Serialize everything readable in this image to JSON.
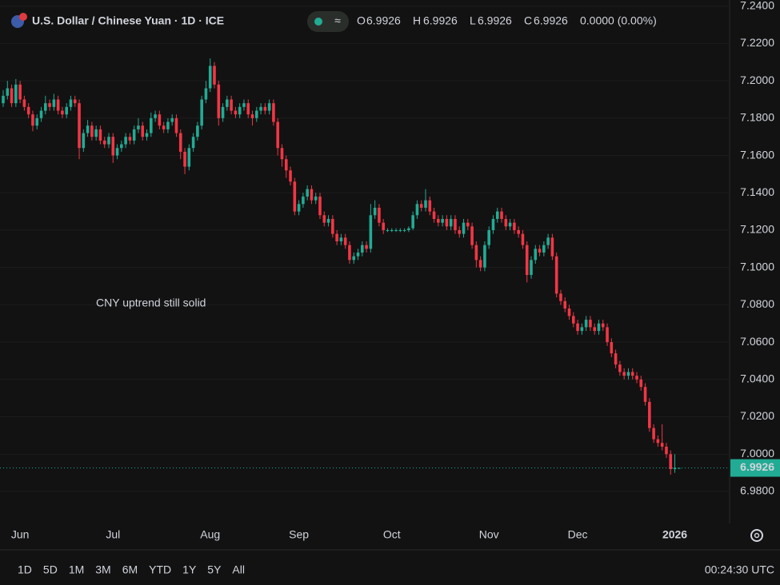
{
  "header": {
    "title": "U.S. Dollar / Chinese Yuan · 1D · ICE",
    "ohlc_letters": [
      "O",
      "H",
      "L",
      "C"
    ],
    "change": "0.0000 (0.00%)"
  },
  "chart_data": {
    "type": "candlestick",
    "annotation": "CNY uptrend still solid",
    "up_color": "#22ab94",
    "down_color": "#f23645",
    "annotation_color": "#e8141c",
    "ylim": [
      6.965,
      7.2433
    ],
    "yticks": [
      {
        "value": 7.24,
        "label": "7.2400"
      },
      {
        "value": 7.22,
        "label": "7.2200"
      },
      {
        "value": 7.2,
        "label": "7.2000"
      },
      {
        "value": 7.18,
        "label": "7.1800"
      },
      {
        "value": 7.16,
        "label": "7.1600"
      },
      {
        "value": 7.14,
        "label": "7.1400"
      },
      {
        "value": 7.12,
        "label": "7.1200"
      },
      {
        "value": 7.1,
        "label": "7.1000"
      },
      {
        "value": 7.08,
        "label": "7.0800"
      },
      {
        "value": 7.06,
        "label": "7.0600"
      },
      {
        "value": 7.04,
        "label": "7.0400"
      },
      {
        "value": 7.02,
        "label": "7.0200"
      },
      {
        "value": 7,
        "label": "7.0000"
      },
      {
        "value": 6.98,
        "label": "6.9800"
      }
    ],
    "grid": true,
    "categories": [
      null,
      null,
      null,
      null,
      "Jun",
      null,
      null,
      null,
      null,
      null,
      null,
      null,
      null,
      null,
      null,
      null,
      null,
      null,
      null,
      null,
      null,
      null,
      null,
      null,
      null,
      null,
      "Jul",
      null,
      null,
      null,
      null,
      null,
      null,
      null,
      null,
      null,
      null,
      null,
      null,
      null,
      null,
      null,
      null,
      null,
      null,
      null,
      null,
      null,
      null,
      "Aug",
      null,
      null,
      null,
      null,
      null,
      null,
      null,
      null,
      null,
      null,
      null,
      null,
      null,
      null,
      null,
      null,
      null,
      null,
      null,
      null,
      "Sep",
      null,
      null,
      null,
      null,
      null,
      null,
      null,
      null,
      null,
      null,
      null,
      null,
      null,
      null,
      null,
      null,
      null,
      null,
      null,
      null,
      null,
      "Oct",
      null,
      null,
      null,
      null,
      null,
      null,
      null,
      null,
      null,
      null,
      null,
      null,
      null,
      null,
      null,
      null,
      null,
      null,
      null,
      null,
      null,
      null,
      "Nov",
      null,
      null,
      null,
      null,
      null,
      null,
      null,
      null,
      null,
      null,
      null,
      null,
      null,
      null,
      null,
      null,
      null,
      null,
      null,
      null,
      "Dec",
      null,
      null,
      null,
      null,
      null,
      null,
      null,
      null,
      null,
      null,
      null,
      null,
      null,
      null,
      null,
      null,
      null,
      null,
      null,
      null,
      null,
      null,
      "2026",
      null
    ],
    "open": [
      7.188,
      7.192,
      7.196,
      7.188,
      7.198,
      7.19,
      7.186,
      7.182,
      7.176,
      7.18,
      7.184,
      7.188,
      7.186,
      7.19,
      7.184,
      7.182,
      7.186,
      7.19,
      7.188,
      7.164,
      7.172,
      7.176,
      7.17,
      7.174,
      7.168,
      7.166,
      7.17,
      7.16,
      7.164,
      7.166,
      7.17,
      7.168,
      7.174,
      7.176,
      7.17,
      7.172,
      7.18,
      7.182,
      7.176,
      7.174,
      7.178,
      7.18,
      7.172,
      7.162,
      7.154,
      7.164,
      7.17,
      7.176,
      7.19,
      7.196,
      7.208,
      7.198,
      7.18,
      7.186,
      7.19,
      7.184,
      7.182,
      7.186,
      7.188,
      7.182,
      7.18,
      7.184,
      7.186,
      7.184,
      7.188,
      7.178,
      7.164,
      7.158,
      7.152,
      7.146,
      7.13,
      7.134,
      7.138,
      7.142,
      7.136,
      7.138,
      7.128,
      7.124,
      7.126,
      7.118,
      7.114,
      7.116,
      7.112,
      7.104,
      7.106,
      7.108,
      7.112,
      7.11,
      7.128,
      7.132,
      7.124,
      7.12,
      7.12,
      7.12,
      7.12,
      7.12,
      7.12,
      7.121,
      7.128,
      7.134,
      7.132,
      7.136,
      7.13,
      7.126,
      7.124,
      7.126,
      7.122,
      7.126,
      7.12,
      7.118,
      7.124,
      7.122,
      7.112,
      7.104,
      7.1,
      7.112,
      7.12,
      7.126,
      7.13,
      7.126,
      7.122,
      7.124,
      7.12,
      7.118,
      7.112,
      7.096,
      7.104,
      7.11,
      7.108,
      7.112,
      7.116,
      7.106,
      7.086,
      7.082,
      7.078,
      7.074,
      7.07,
      7.066,
      7.068,
      7.072,
      7.068,
      7.066,
      7.07,
      7.068,
      7.06,
      7.054,
      7.048,
      7.044,
      7.042,
      7.044,
      7.042,
      7.04,
      7.036,
      7.028,
      7.014,
      7.008,
      7.006,
      7.004,
      7.0,
      6.992,
      6.9926
    ],
    "high": [
      7.195,
      7.2,
      7.198,
      7.201,
      7.2,
      7.192,
      7.188,
      7.184,
      7.182,
      7.186,
      7.192,
      7.19,
      7.193,
      7.192,
      7.186,
      7.188,
      7.192,
      7.192,
      7.19,
      7.174,
      7.179,
      7.178,
      7.176,
      7.176,
      7.17,
      7.172,
      7.172,
      7.166,
      7.168,
      7.172,
      7.172,
      7.176,
      7.18,
      7.178,
      7.174,
      7.183,
      7.184,
      7.184,
      7.178,
      7.18,
      7.182,
      7.182,
      7.174,
      7.164,
      7.166,
      7.172,
      7.178,
      7.192,
      7.2,
      7.212,
      7.21,
      7.2,
      7.188,
      7.192,
      7.192,
      7.186,
      7.188,
      7.19,
      7.19,
      7.184,
      7.186,
      7.188,
      7.188,
      7.19,
      7.19,
      7.18,
      7.166,
      7.16,
      7.154,
      7.148,
      7.136,
      7.14,
      7.144,
      7.144,
      7.14,
      7.14,
      7.13,
      7.128,
      7.128,
      7.12,
      7.118,
      7.118,
      7.114,
      7.108,
      7.11,
      7.114,
      7.114,
      7.134,
      7.136,
      7.134,
      7.126,
      7.121,
      7.121,
      7.121,
      7.121,
      7.121,
      7.122,
      7.13,
      7.136,
      7.136,
      7.142,
      7.138,
      7.132,
      7.128,
      7.128,
      7.128,
      7.128,
      7.128,
      7.122,
      7.126,
      7.126,
      7.124,
      7.114,
      7.106,
      7.114,
      7.122,
      7.128,
      7.132,
      7.132,
      7.128,
      7.126,
      7.126,
      7.122,
      7.12,
      7.114,
      7.106,
      7.112,
      7.112,
      7.114,
      7.118,
      7.118,
      7.108,
      7.088,
      7.084,
      7.08,
      7.076,
      7.072,
      7.07,
      7.074,
      7.074,
      7.07,
      7.072,
      7.072,
      7.07,
      7.062,
      7.056,
      7.05,
      7.046,
      7.046,
      7.046,
      7.044,
      7.042,
      7.038,
      7.03,
      7.016,
      7.01,
      7.016,
      7.006,
      7.002,
      7.0,
      6.9926
    ],
    "low": [
      7.186,
      7.19,
      7.186,
      7.186,
      7.188,
      7.184,
      7.18,
      7.173,
      7.174,
      7.178,
      7.182,
      7.184,
      7.184,
      7.182,
      7.18,
      7.18,
      7.184,
      7.186,
      7.158,
      7.162,
      7.17,
      7.168,
      7.168,
      7.166,
      7.164,
      7.164,
      7.156,
      7.158,
      7.162,
      7.164,
      7.166,
      7.166,
      7.172,
      7.168,
      7.168,
      7.17,
      7.178,
      7.174,
      7.172,
      7.172,
      7.176,
      7.17,
      7.158,
      7.15,
      7.152,
      7.162,
      7.168,
      7.174,
      7.188,
      7.194,
      7.196,
      7.176,
      7.178,
      7.184,
      7.182,
      7.18,
      7.18,
      7.184,
      7.18,
      7.176,
      7.178,
      7.182,
      7.182,
      7.182,
      7.176,
      7.16,
      7.154,
      7.148,
      7.144,
      7.128,
      7.128,
      7.132,
      7.136,
      7.134,
      7.134,
      7.126,
      7.122,
      7.122,
      7.116,
      7.112,
      7.112,
      7.11,
      7.102,
      7.102,
      7.104,
      7.106,
      7.108,
      7.108,
      7.126,
      7.122,
      7.118,
      7.119,
      7.119,
      7.119,
      7.119,
      7.119,
      7.119,
      7.12,
      7.126,
      7.13,
      7.13,
      7.128,
      7.124,
      7.122,
      7.122,
      7.12,
      7.12,
      7.118,
      7.116,
      7.116,
      7.12,
      7.11,
      7.1,
      7.098,
      7.098,
      7.11,
      7.118,
      7.124,
      7.124,
      7.12,
      7.12,
      7.118,
      7.116,
      7.11,
      7.092,
      7.094,
      7.102,
      7.106,
      7.106,
      7.11,
      7.104,
      7.084,
      7.08,
      7.076,
      7.072,
      7.068,
      7.064,
      7.064,
      7.066,
      7.066,
      7.064,
      7.064,
      7.066,
      7.058,
      7.052,
      7.046,
      7.042,
      7.04,
      7.04,
      7.04,
      7.038,
      7.034,
      7.026,
      7.012,
      7.006,
      7.004,
      7.002,
      6.998,
      6.989,
      6.99,
      6.9926
    ],
    "close": [
      7.192,
      7.196,
      7.188,
      7.198,
      7.19,
      7.186,
      7.182,
      7.176,
      7.18,
      7.184,
      7.188,
      7.186,
      7.19,
      7.184,
      7.182,
      7.186,
      7.19,
      7.188,
      7.164,
      7.172,
      7.176,
      7.17,
      7.174,
      7.168,
      7.166,
      7.17,
      7.16,
      7.164,
      7.166,
      7.17,
      7.168,
      7.174,
      7.176,
      7.17,
      7.172,
      7.18,
      7.182,
      7.176,
      7.174,
      7.178,
      7.18,
      7.172,
      7.162,
      7.154,
      7.164,
      7.17,
      7.176,
      7.19,
      7.196,
      7.208,
      7.198,
      7.18,
      7.186,
      7.19,
      7.184,
      7.182,
      7.186,
      7.188,
      7.182,
      7.18,
      7.184,
      7.186,
      7.184,
      7.188,
      7.178,
      7.164,
      7.158,
      7.152,
      7.146,
      7.13,
      7.134,
      7.138,
      7.142,
      7.136,
      7.138,
      7.128,
      7.124,
      7.126,
      7.118,
      7.114,
      7.116,
      7.112,
      7.104,
      7.106,
      7.108,
      7.112,
      7.11,
      7.128,
      7.132,
      7.124,
      7.12,
      7.12,
      7.12,
      7.12,
      7.12,
      7.12,
      7.121,
      7.128,
      7.134,
      7.132,
      7.136,
      7.13,
      7.126,
      7.124,
      7.126,
      7.122,
      7.126,
      7.12,
      7.118,
      7.124,
      7.122,
      7.112,
      7.104,
      7.1,
      7.112,
      7.12,
      7.126,
      7.13,
      7.126,
      7.122,
      7.124,
      7.12,
      7.118,
      7.112,
      7.096,
      7.104,
      7.11,
      7.108,
      7.112,
      7.116,
      7.106,
      7.086,
      7.082,
      7.078,
      7.074,
      7.07,
      7.066,
      7.068,
      7.072,
      7.068,
      7.066,
      7.07,
      7.068,
      7.06,
      7.054,
      7.048,
      7.044,
      7.042,
      7.044,
      7.042,
      7.04,
      7.036,
      7.028,
      7.014,
      7.008,
      7.006,
      7.004,
      7.0,
      6.992,
      6.9926,
      6.9926
    ]
  },
  "toolbar": {
    "ranges": [
      "1D",
      "5D",
      "1M",
      "3M",
      "6M",
      "YTD",
      "1Y",
      "5Y",
      "All"
    ],
    "clock": "00:24:30 UTC"
  }
}
